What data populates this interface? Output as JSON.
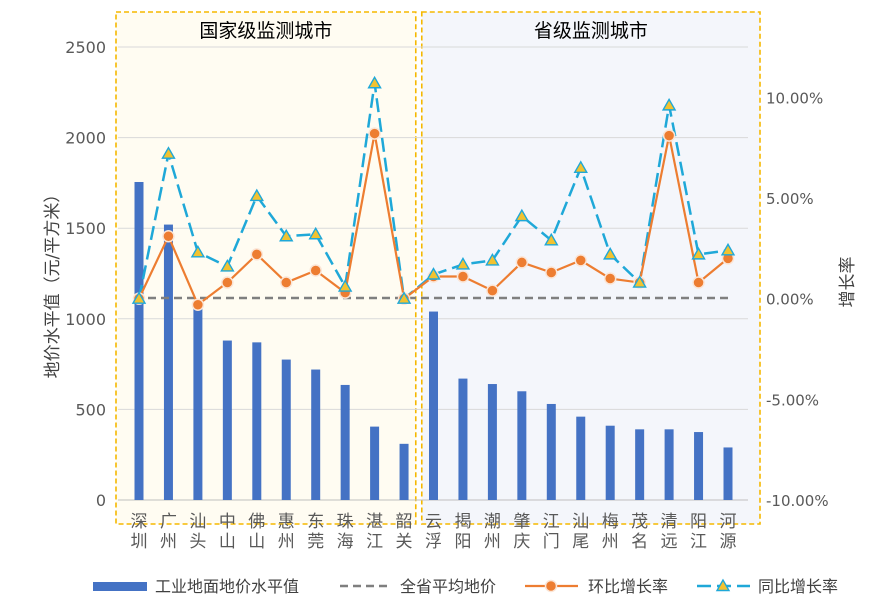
{
  "chart_data": {
    "type": "bar",
    "panels": [
      {
        "title": "国家级监测城市",
        "count": 10
      },
      {
        "title": "省级监测城市",
        "count": 11
      }
    ],
    "categories": [
      "深圳",
      "广州",
      "汕头",
      "中山",
      "佛山",
      "惠州",
      "东莞",
      "珠海",
      "湛江",
      "韶关",
      "云浮",
      "揭阳",
      "潮州",
      "肇庆",
      "江门",
      "汕尾",
      "梅州",
      "茂名",
      "清远",
      "阳江",
      "河源"
    ],
    "ylabel": "地价水平值（元/平方米）",
    "y2label": "增长率",
    "ylim": [
      0,
      2500
    ],
    "y_ticks": [
      0,
      500,
      1000,
      1500,
      2000,
      2500
    ],
    "y2lim": [
      -10,
      12.5
    ],
    "y2_ticks": [
      -10,
      -5,
      0,
      5,
      10
    ],
    "y2_tick_labels": [
      "-10.00%",
      "-5.00%",
      "0.00%",
      "5.00%",
      "10.00%"
    ],
    "series": [
      {
        "name": "工业地面地价水平值",
        "type": "bar",
        "axis": "left",
        "color": "#4472c4",
        "values": [
          1755,
          1520,
          1060,
          880,
          870,
          775,
          720,
          635,
          405,
          310,
          1040,
          670,
          640,
          600,
          530,
          460,
          410,
          390,
          390,
          375,
          290
        ]
      },
      {
        "name": "全省平均地价",
        "type": "hline",
        "axis": "left",
        "color": "#7f7f7f",
        "value": 1115
      },
      {
        "name": "环比增长率",
        "type": "line",
        "axis": "right",
        "color": "#ed7d31",
        "values": [
          0.0,
          3.1,
          -0.3,
          0.8,
          2.2,
          0.8,
          1.4,
          0.3,
          8.2,
          0.0,
          1.1,
          1.1,
          0.4,
          1.8,
          1.3,
          1.9,
          1.0,
          0.8,
          8.1,
          0.8,
          2.0
        ]
      },
      {
        "name": "同比增长率",
        "type": "line",
        "axis": "right",
        "color": "#1fa8d8",
        "values": [
          0.0,
          7.2,
          2.3,
          1.6,
          5.1,
          3.1,
          3.2,
          0.6,
          10.7,
          0.0,
          1.2,
          1.7,
          1.9,
          4.1,
          2.9,
          6.5,
          2.2,
          0.8,
          9.6,
          2.2,
          2.4
        ]
      }
    ],
    "legend_position": "bottom",
    "grid": true
  }
}
